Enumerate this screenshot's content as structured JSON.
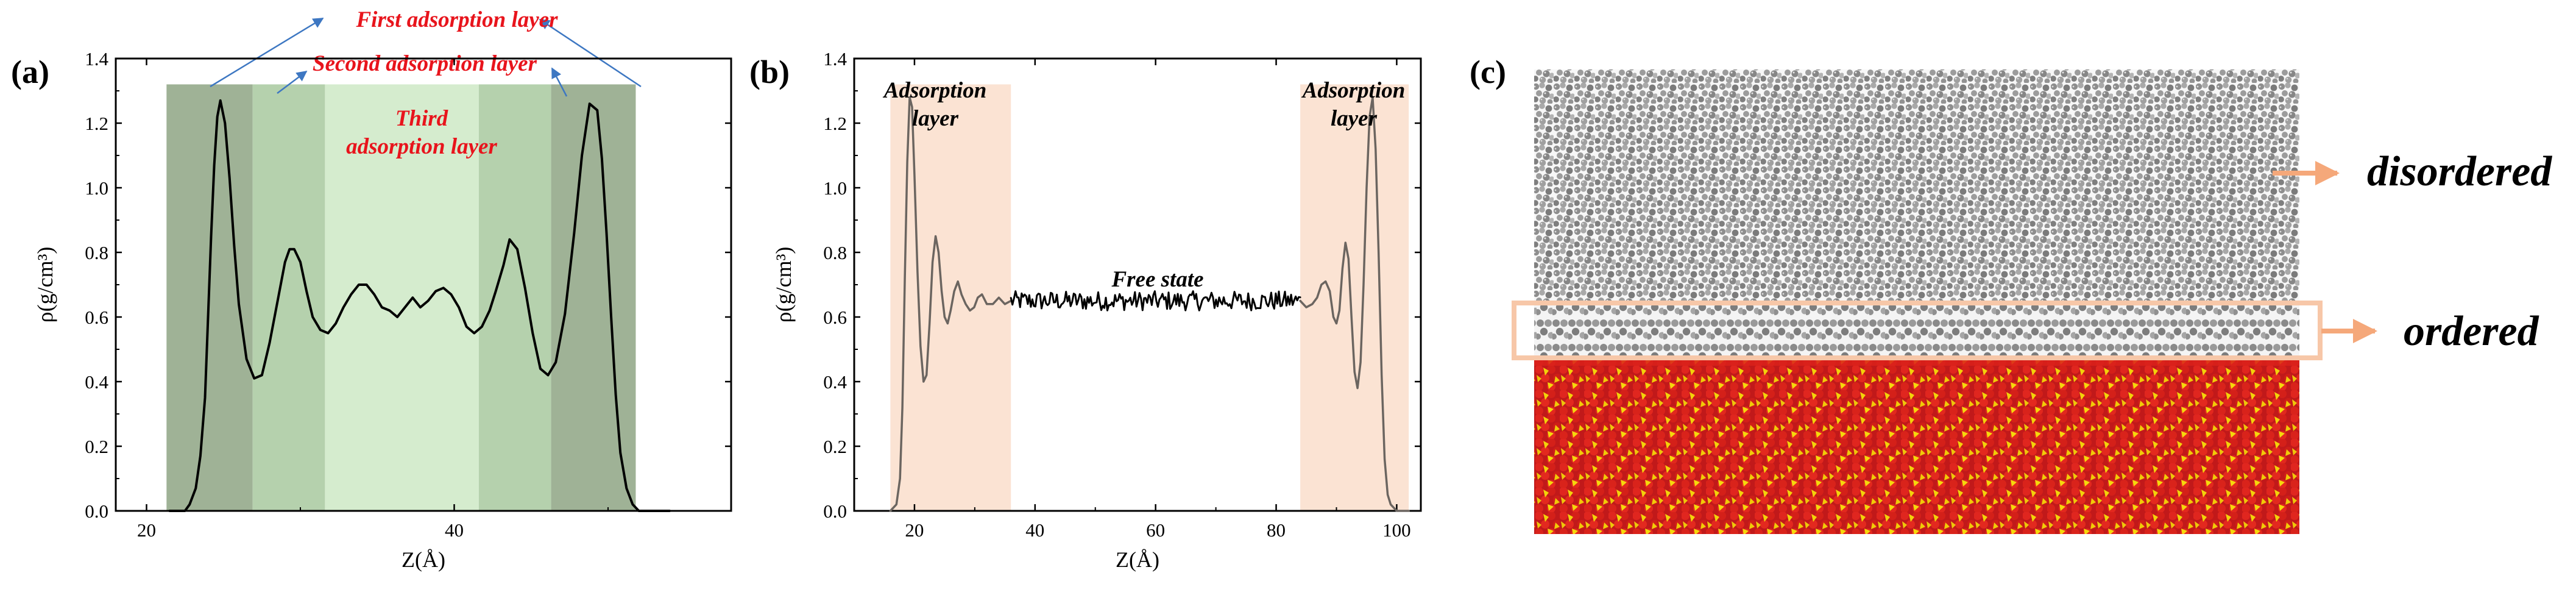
{
  "figure": {
    "colors": {
      "ink": "#000000",
      "annotation_red": "#e8141c",
      "arrow_blue": "#3d77c2",
      "band_dark": "#9fb296",
      "band_mid": "#b5d1ad",
      "band_light": "#d5ecce",
      "adsorption_band": "#fbe3d3",
      "profile_b": "#6b6560",
      "callout_orange": "#f5a87a",
      "molecule_gray": "#8a8a8a",
      "crystal_red": "#d9211b",
      "crystal_yellow": "#f2d20a"
    }
  },
  "chart_data": [
    {
      "panel_label": "(a)",
      "type": "line",
      "xlabel": "Z(Å)",
      "ylabel": "ρ(g/cm³)",
      "xlim": [
        18,
        58
      ],
      "ylim": [
        0,
        1.4
      ],
      "xticks": [
        "20",
        "40"
      ],
      "xtick_values": [
        20,
        40
      ],
      "yticks": [
        "0.0",
        "0.2",
        "0.4",
        "0.6",
        "0.8",
        "1.0",
        "1.2",
        "1.4"
      ],
      "ytick_values": [
        0,
        0.2,
        0.4,
        0.6,
        0.8,
        1.0,
        1.2,
        1.4
      ],
      "bands": [
        {
          "name": "first adsorption layer (left)",
          "x0": 21.3,
          "x1": 26.9,
          "ytop": 1.32,
          "shade": "dark"
        },
        {
          "name": "second adsorption layer (left)",
          "x0": 26.9,
          "x1": 31.6,
          "ytop": 1.32,
          "shade": "mid"
        },
        {
          "name": "third adsorption layer",
          "x0": 31.6,
          "x1": 41.6,
          "ytop": 1.32,
          "shade": "light"
        },
        {
          "name": "second adsorption layer (right)",
          "x0": 41.6,
          "x1": 46.3,
          "ytop": 1.32,
          "shade": "mid"
        },
        {
          "name": "first adsorption layer (right)",
          "x0": 46.3,
          "x1": 51.8,
          "ytop": 1.32,
          "shade": "dark"
        }
      ],
      "annotations": {
        "first": "First adsorption layer",
        "second": "Second adsorption layer",
        "third_line1": "Third",
        "third_line2": "adsorption layer"
      },
      "series": [
        {
          "name": "density profile",
          "x": [
            21.5,
            22.5,
            22.8,
            23.2,
            23.5,
            23.8,
            24.0,
            24.2,
            24.4,
            24.6,
            24.8,
            25.1,
            25.4,
            25.7,
            26.0,
            26.5,
            27.0,
            27.5,
            28.0,
            28.6,
            29.0,
            29.3,
            29.6,
            30.0,
            30.4,
            30.8,
            31.3,
            31.8,
            32.3,
            32.8,
            33.3,
            33.8,
            34.3,
            34.8,
            35.3,
            35.8,
            36.3,
            36.8,
            37.3,
            37.8,
            38.3,
            38.8,
            39.3,
            39.8,
            40.3,
            40.8,
            41.3,
            41.8,
            42.3,
            42.7,
            43.2,
            43.6,
            44.1,
            44.6,
            45.1,
            45.6,
            46.1,
            46.6,
            47.2,
            47.8,
            48.3,
            48.8,
            49.3,
            49.6,
            49.9,
            50.2,
            50.5,
            50.8,
            51.2,
            51.6,
            52.0,
            52.5,
            54.0
          ],
          "y": [
            0.0,
            0.0,
            0.02,
            0.07,
            0.17,
            0.35,
            0.6,
            0.85,
            1.07,
            1.22,
            1.27,
            1.2,
            1.03,
            0.82,
            0.64,
            0.47,
            0.41,
            0.42,
            0.52,
            0.67,
            0.77,
            0.81,
            0.81,
            0.77,
            0.68,
            0.6,
            0.56,
            0.55,
            0.58,
            0.63,
            0.67,
            0.7,
            0.7,
            0.67,
            0.63,
            0.62,
            0.6,
            0.63,
            0.66,
            0.63,
            0.65,
            0.68,
            0.69,
            0.67,
            0.63,
            0.57,
            0.55,
            0.57,
            0.62,
            0.68,
            0.76,
            0.84,
            0.81,
            0.69,
            0.55,
            0.44,
            0.42,
            0.46,
            0.61,
            0.86,
            1.1,
            1.26,
            1.24,
            1.09,
            0.86,
            0.6,
            0.36,
            0.18,
            0.07,
            0.02,
            0.0,
            0.0,
            0.0
          ]
        }
      ]
    },
    {
      "panel_label": "(b)",
      "type": "line",
      "xlabel": "Z(Å)",
      "ylabel": "ρ(g/cm³)",
      "xlim": [
        10,
        104
      ],
      "ylim": [
        0,
        1.4
      ],
      "xticks": [
        "20",
        "40",
        "60",
        "80",
        "100"
      ],
      "xtick_values": [
        20,
        40,
        60,
        80,
        100
      ],
      "yticks": [
        "0.0",
        "0.2",
        "0.4",
        "0.6",
        "0.8",
        "1.0",
        "1.2",
        "1.4"
      ],
      "ytick_values": [
        0,
        0.2,
        0.4,
        0.6,
        0.8,
        1.0,
        1.2,
        1.4
      ],
      "bands": [
        {
          "name": "adsorption layer (left)",
          "x0": 16,
          "x1": 36,
          "ytop": 1.32
        },
        {
          "name": "adsorption layer (right)",
          "x0": 84,
          "x1": 102,
          "ytop": 1.32
        }
      ],
      "annotations": {
        "left_line1": "Adsorption",
        "left_line2": "layer",
        "right_line1": "Adsorption",
        "right_line2": "layer",
        "free_state": "Free state"
      },
      "series": [
        {
          "name": "left adsorption profile",
          "x": [
            16.0,
            17.0,
            17.6,
            18.0,
            18.4,
            18.8,
            19.2,
            19.6,
            20.0,
            20.5,
            21.0,
            21.5,
            22.0,
            22.5,
            23.0,
            23.5,
            24.0,
            24.5,
            25.0,
            25.5,
            26.0,
            26.6,
            27.2,
            27.8,
            28.5,
            29.2,
            29.9,
            30.5,
            31.2,
            32.0,
            33.0,
            34.0,
            35.0,
            36.0
          ],
          "y": [
            0.0,
            0.02,
            0.1,
            0.32,
            0.72,
            1.08,
            1.28,
            1.25,
            1.04,
            0.74,
            0.51,
            0.4,
            0.42,
            0.58,
            0.77,
            0.85,
            0.8,
            0.68,
            0.6,
            0.58,
            0.62,
            0.68,
            0.71,
            0.67,
            0.64,
            0.62,
            0.63,
            0.66,
            0.67,
            0.64,
            0.64,
            0.66,
            0.64,
            0.65
          ]
        },
        {
          "name": "free state",
          "x_start": 36,
          "x_end": 84,
          "points": 190,
          "mean": 0.65,
          "noise_amplitude": 0.03
        },
        {
          "name": "right adsorption profile",
          "x": [
            84.0,
            85.0,
            86.0,
            86.8,
            87.5,
            88.2,
            88.9,
            89.5,
            90.0,
            90.5,
            91.0,
            91.5,
            92.0,
            92.5,
            93.0,
            93.5,
            94.0,
            94.5,
            95.0,
            95.5,
            96.0,
            96.5,
            97.0,
            97.5,
            98.0,
            98.5,
            99.0,
            100.0,
            101.0,
            102.0
          ],
          "y": [
            0.65,
            0.63,
            0.64,
            0.66,
            0.7,
            0.71,
            0.68,
            0.6,
            0.58,
            0.62,
            0.75,
            0.83,
            0.78,
            0.6,
            0.43,
            0.38,
            0.46,
            0.7,
            1.0,
            1.22,
            1.28,
            1.12,
            0.8,
            0.42,
            0.16,
            0.05,
            0.02,
            0.0,
            0.0,
            0.0
          ]
        }
      ]
    }
  ],
  "panel_c": {
    "label": "(c)",
    "callout_top": "disordered",
    "callout_bottom": "ordered"
  }
}
